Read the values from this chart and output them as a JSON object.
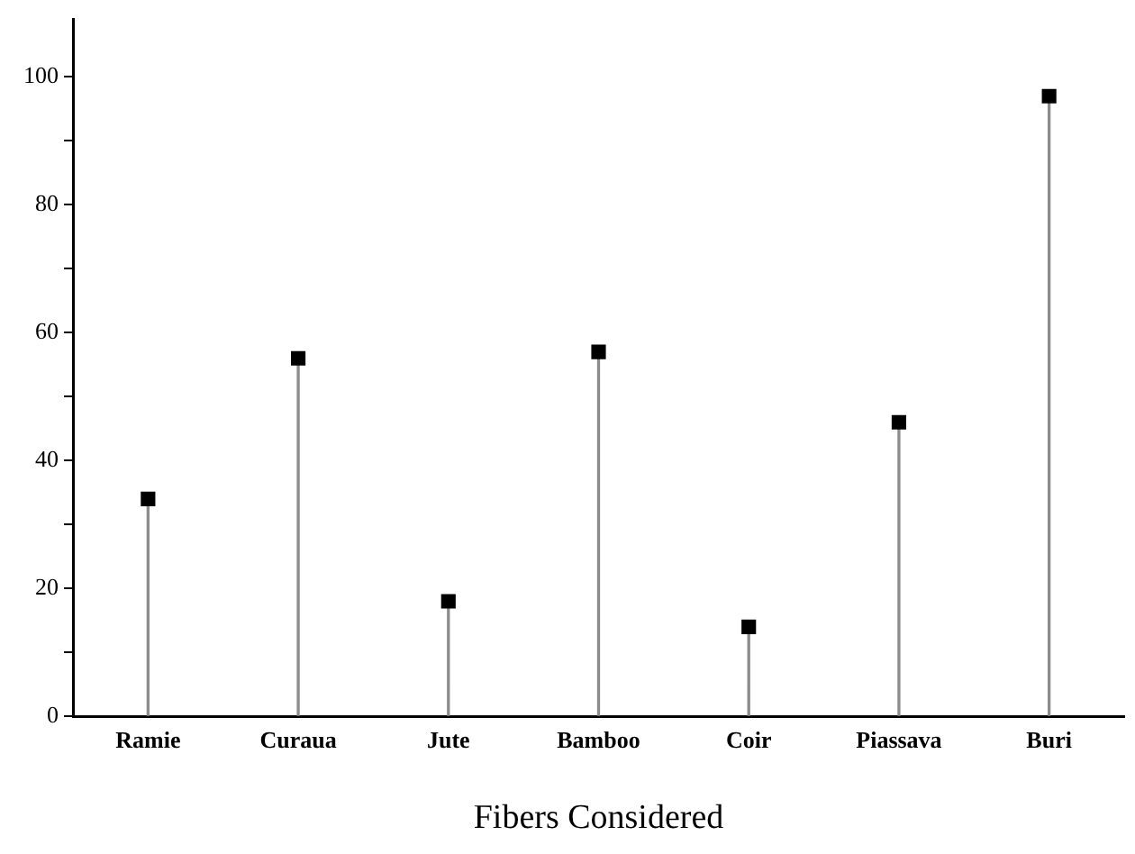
{
  "chart_data": {
    "type": "lollipop",
    "xlabel": "Fibers Considered",
    "categories": [
      "Ramie",
      "Curaua",
      "Jute",
      "Bamboo",
      "Coir",
      "Piassava",
      "Buri"
    ],
    "values": [
      34,
      56,
      18,
      57,
      14,
      46,
      97
    ],
    "color": "#000000",
    "ylim": [
      0,
      109
    ],
    "yticks": [
      0,
      {
        "value": 10,
        "label": null
      },
      20,
      {
        "value": 30,
        "label": null
      },
      40,
      {
        "value": 50,
        "label": null
      },
      60,
      {
        "value": 70,
        "label": null
      },
      80,
      {
        "value": 90,
        "label": null
      },
      100
    ],
    "grid": false,
    "legend": false,
    "marker": "square"
  }
}
